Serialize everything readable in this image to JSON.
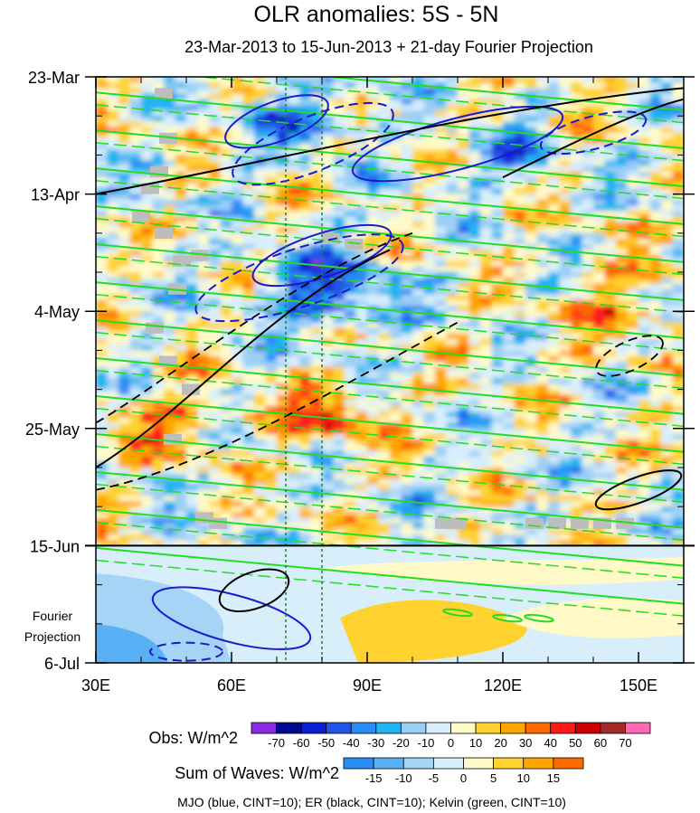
{
  "chart_data": {
    "type": "heatmap",
    "title": "OLR anomalies: 5S - 5N",
    "subtitle": "23-Mar-2013 to 15-Jun-2013 + 21-day Fourier Projection",
    "x_tick_labels": [
      "30E",
      "60E",
      "90E",
      "120E",
      "150E"
    ],
    "x_ticks": [
      30,
      60,
      90,
      120,
      150
    ],
    "xlim": [
      30,
      160
    ],
    "y_tick_labels": [
      "23-Mar",
      "13-Apr",
      "4-May",
      "25-May",
      "15-Jun",
      "6-Jul"
    ],
    "y_ticks_days": [
      0,
      21,
      42,
      63,
      84,
      105
    ],
    "ylim_days": [
      0,
      105
    ],
    "observation_end_label": "15-Jun",
    "projection_label": [
      "Fourier",
      "Projection"
    ],
    "reference_longitudes": [
      72,
      80
    ],
    "colorbar_obs": {
      "label": "Obs: W/m^2",
      "levels": [
        "-70",
        "-60",
        "-50",
        "-40",
        "-30",
        "-20",
        "-10",
        "0",
        "10",
        "20",
        "30",
        "40",
        "50",
        "60",
        "70"
      ],
      "colors": [
        "#8a2be2",
        "#000a8c",
        "#0a1fd6",
        "#2255e6",
        "#2a8cf5",
        "#22b4f0",
        "#9ccff5",
        "#d8eefb",
        "#fffac8",
        "#ffd230",
        "#ffa500",
        "#ff6a00",
        "#ff1a1a",
        "#cc0000",
        "#a52a2a",
        "#ff69b4"
      ]
    },
    "colorbar_waves": {
      "label": "Sum of Waves: W/m^2",
      "levels": [
        "-15",
        "-10",
        "-5",
        "0",
        "5",
        "10",
        "15"
      ],
      "colors": [
        "#2a8cf5",
        "#5ab0f5",
        "#a5d4f7",
        "#d8eefb",
        "#fffac8",
        "#ffd230",
        "#ffa500",
        "#ff6a00"
      ]
    },
    "footnote": "MJO (blue, CINT=10); ER (black, CINT=10); Kelvin (green, CINT=10)",
    "contour_colors": {
      "mjo": "#1a1acc",
      "er": "#000000",
      "kelvin": "#22dd22"
    }
  }
}
